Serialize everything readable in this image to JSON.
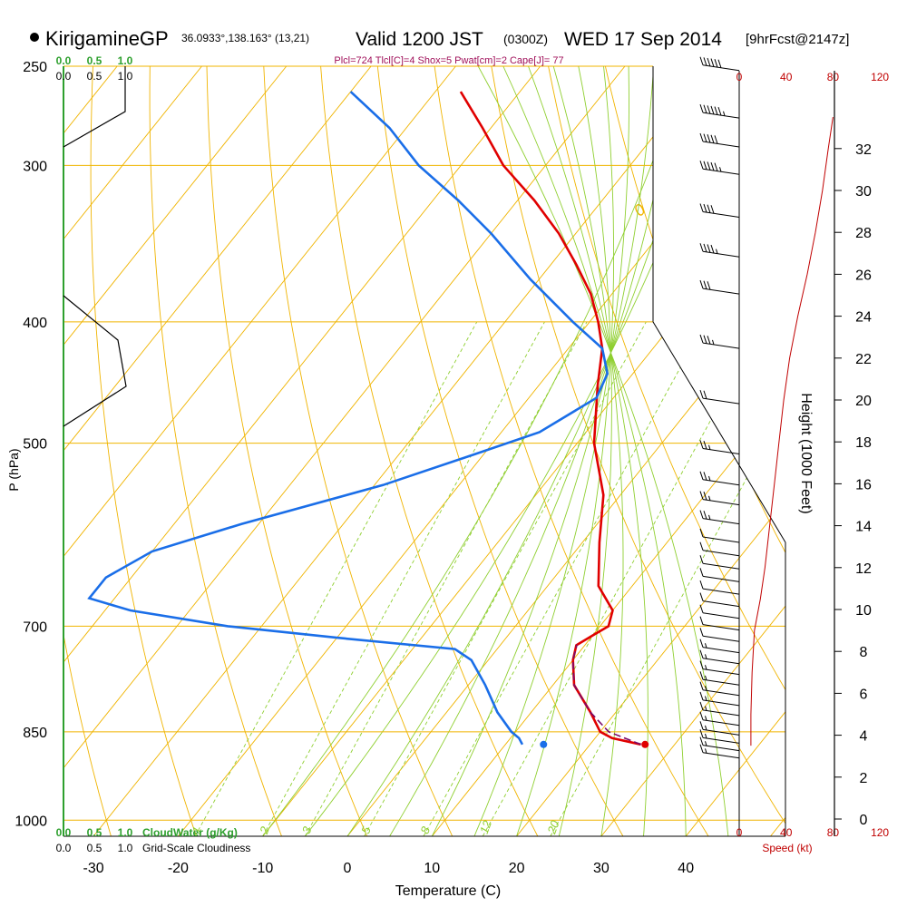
{
  "header": {
    "station": "KirigamineGP",
    "coords": "36.0933°,138.163° (13,21)",
    "valid_main": "Valid 1200 JST",
    "valid_z": "(0300Z)",
    "valid_date": "WED 17 Sep 2014",
    "forecast": "[9hrFcst@2147z]",
    "indices": "Plcl=724 Tlcl[C]=4 Shox=5 Pwat[cm]=2 Cape[J]= 77"
  },
  "colors": {
    "temperature": "#e00000",
    "dewpoint": "#1a6ee8",
    "parcel": "#7a0a6a",
    "isotherm": "#f0b400",
    "dry_adiabat": "#f0b400",
    "moist_adiabat": "#8fcf30",
    "mixing_ratio": "#8fcf30",
    "cloudwater": "#2ea02e",
    "wind_speed": "#c00000",
    "indices_text": "#a0105a"
  },
  "chart_data": {
    "type": "line",
    "title": "KirigamineGP 36.0933°,138.163° (13,21) Valid 1200 JST (0300Z) WED 17 Sep 2014 [9hrFcst@2147z]",
    "xlabel": "Temperature (C)",
    "ylabel": "P (hPa)",
    "right_ylabel": "Height (1000 Feet)",
    "xlim": [
      -35,
      50
    ],
    "ylim_hpa": [
      1030,
      250
    ],
    "pressure_ticks": [
      "250",
      "300",
      "400",
      "500",
      "700",
      "850",
      "1000"
    ],
    "pressure_tick_values": [
      250,
      300,
      400,
      500,
      700,
      850,
      1000
    ],
    "temperature_ticks": [
      "-30",
      "-20",
      "-10",
      "0",
      "10",
      "20",
      "30",
      "40"
    ],
    "temperature_tick_values": [
      -30,
      -20,
      -10,
      0,
      10,
      20,
      30,
      40
    ],
    "height_ticks": [
      "0",
      "2",
      "4",
      "6",
      "8",
      "10",
      "12",
      "14",
      "16",
      "18",
      "20",
      "22",
      "24",
      "26",
      "28",
      "30",
      "32"
    ],
    "height_tick_values": [
      0,
      2,
      4,
      6,
      8,
      10,
      12,
      14,
      16,
      18,
      20,
      22,
      24,
      26,
      28,
      30,
      32
    ],
    "speed_ticks": [
      "0",
      "40",
      "80",
      "120"
    ],
    "speed_tick_values": [
      0,
      40,
      80,
      120
    ],
    "speed_label": "Speed (kt)",
    "cloudwater_ticks": [
      "0.0",
      "0.5",
      "1.0"
    ],
    "cloudwater_label": "CloudWater (g/Kg)",
    "cloudiness_ticks": [
      "0.0",
      "0.5",
      "1.0"
    ],
    "cloudiness_label": "Grid-Scale Cloudiness",
    "isotherm_labels": [
      "10",
      "0",
      "-10",
      "-20",
      "-30"
    ],
    "isotherm_label_values": [
      10,
      0,
      -10,
      -20,
      -30
    ],
    "dry_adiabat_labels": [
      "0",
      "10",
      "20",
      "30"
    ],
    "mixing_ratio_labels": [
      "1",
      "2",
      "3",
      "5",
      "8",
      "12",
      "20"
    ],
    "series": [
      {
        "name": "Temperature",
        "points": [
          {
            "p": 870,
            "t": 26
          },
          {
            "p": 860,
            "t": 22
          },
          {
            "p": 850,
            "t": 20
          },
          {
            "p": 820,
            "t": 17
          },
          {
            "p": 780,
            "t": 12.5
          },
          {
            "p": 745,
            "t": 10
          },
          {
            "p": 725,
            "t": 9
          },
          {
            "p": 712,
            "t": 10
          },
          {
            "p": 700,
            "t": 11
          },
          {
            "p": 680,
            "t": 10
          },
          {
            "p": 650,
            "t": 6
          },
          {
            "p": 600,
            "t": 2
          },
          {
            "p": 550,
            "t": -2
          },
          {
            "p": 500,
            "t": -8
          },
          {
            "p": 450,
            "t": -13
          },
          {
            "p": 420,
            "t": -16
          },
          {
            "p": 400,
            "t": -19
          },
          {
            "p": 380,
            "t": -22.5
          },
          {
            "p": 360,
            "t": -27
          },
          {
            "p": 340,
            "t": -32
          },
          {
            "p": 320,
            "t": -38
          },
          {
            "p": 300,
            "t": -45
          },
          {
            "p": 280,
            "t": -51
          },
          {
            "p": 262,
            "t": -57
          }
        ]
      },
      {
        "name": "Dewpoint",
        "points": [
          {
            "p": 870,
            "t": 12
          },
          {
            "p": 860,
            "t": 11
          },
          {
            "p": 850,
            "t": 9.5
          },
          {
            "p": 820,
            "t": 6
          },
          {
            "p": 780,
            "t": 2
          },
          {
            "p": 745,
            "t": -2
          },
          {
            "p": 730,
            "t": -5
          },
          {
            "p": 715,
            "t": -20
          },
          {
            "p": 700,
            "t": -34
          },
          {
            "p": 680,
            "t": -47
          },
          {
            "p": 665,
            "t": -53
          },
          {
            "p": 640,
            "t": -53
          },
          {
            "p": 610,
            "t": -50
          },
          {
            "p": 580,
            "t": -42
          },
          {
            "p": 540,
            "t": -29
          },
          {
            "p": 510,
            "t": -21
          },
          {
            "p": 490,
            "t": -15.5
          },
          {
            "p": 460,
            "t": -12
          },
          {
            "p": 440,
            "t": -13
          },
          {
            "p": 420,
            "t": -16
          },
          {
            "p": 400,
            "t": -22
          },
          {
            "p": 370,
            "t": -31
          },
          {
            "p": 340,
            "t": -40
          },
          {
            "p": 320,
            "t": -47
          },
          {
            "p": 300,
            "t": -55
          },
          {
            "p": 280,
            "t": -62
          },
          {
            "p": 262,
            "t": -70
          }
        ]
      },
      {
        "name": "Parcel",
        "points": [
          {
            "p": 870,
            "t": 26
          },
          {
            "p": 850,
            "t": 21
          },
          {
            "p": 820,
            "t": 17
          },
          {
            "p": 780,
            "t": 12.5
          },
          {
            "p": 745,
            "t": 10
          },
          {
            "p": 724,
            "t": 9
          }
        ]
      }
    ],
    "surface_markers": [
      {
        "name": "Surface temperature",
        "p": 870,
        "t": 26.5
      },
      {
        "name": "Surface dewpoint",
        "p": 870,
        "t": 14.5
      }
    ],
    "wind_speed_profile": [
      {
        "h": 3.5,
        "kt": 10
      },
      {
        "h": 5,
        "kt": 10
      },
      {
        "h": 7,
        "kt": 11
      },
      {
        "h": 9,
        "kt": 13
      },
      {
        "h": 10.5,
        "kt": 18
      },
      {
        "h": 12,
        "kt": 22
      },
      {
        "h": 14,
        "kt": 26
      },
      {
        "h": 16,
        "kt": 30
      },
      {
        "h": 18,
        "kt": 34
      },
      {
        "h": 20,
        "kt": 38
      },
      {
        "h": 22,
        "kt": 43
      },
      {
        "h": 24,
        "kt": 50
      },
      {
        "h": 26,
        "kt": 58
      },
      {
        "h": 28,
        "kt": 65
      },
      {
        "h": 30,
        "kt": 71
      },
      {
        "h": 32,
        "kt": 76
      },
      {
        "h": 33.5,
        "kt": 80
      }
    ],
    "wind_barbs": [
      {
        "p": 252,
        "kt": 60
      },
      {
        "p": 275,
        "kt": 55
      },
      {
        "p": 290,
        "kt": 50
      },
      {
        "p": 305,
        "kt": 45
      },
      {
        "p": 330,
        "kt": 40
      },
      {
        "p": 355,
        "kt": 35
      },
      {
        "p": 380,
        "kt": 30
      },
      {
        "p": 420,
        "kt": 25
      },
      {
        "p": 465,
        "kt": 20
      },
      {
        "p": 510,
        "kt": 15
      },
      {
        "p": 540,
        "kt": 15
      },
      {
        "p": 560,
        "kt": 15
      },
      {
        "p": 580,
        "kt": 15
      },
      {
        "p": 600,
        "kt": 10
      },
      {
        "p": 615,
        "kt": 10
      },
      {
        "p": 630,
        "kt": 10
      },
      {
        "p": 645,
        "kt": 10
      },
      {
        "p": 660,
        "kt": 10
      },
      {
        "p": 675,
        "kt": 10
      },
      {
        "p": 690,
        "kt": 10
      },
      {
        "p": 705,
        "kt": 10
      },
      {
        "p": 720,
        "kt": 10
      },
      {
        "p": 735,
        "kt": 5
      },
      {
        "p": 750,
        "kt": 5
      },
      {
        "p": 765,
        "kt": 5
      },
      {
        "p": 780,
        "kt": 5
      },
      {
        "p": 795,
        "kt": 5
      },
      {
        "p": 810,
        "kt": 5
      },
      {
        "p": 825,
        "kt": 5
      },
      {
        "p": 840,
        "kt": 5
      },
      {
        "p": 855,
        "kt": 5
      },
      {
        "p": 868,
        "kt": 5
      },
      {
        "p": 880,
        "kt": 5
      },
      {
        "p": 892,
        "kt": 5
      }
    ],
    "grid": true
  }
}
